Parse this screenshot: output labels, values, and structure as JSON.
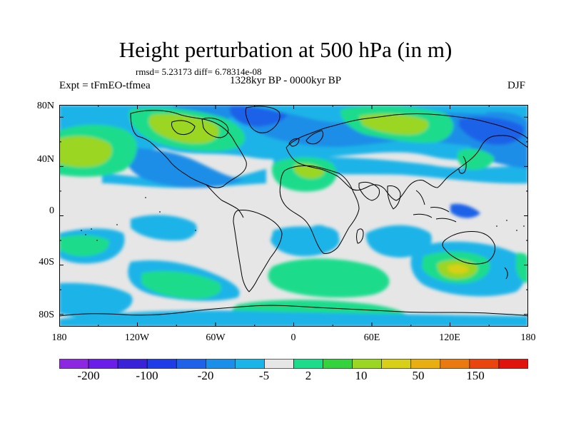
{
  "title": "Height perturbation at 500 hPa (in m)",
  "stats_text": "rmsd= 5.23173 diff= 6.78314e-08",
  "period": "1328kyr BP - 0000kyr BP",
  "experiment": "Expt = tFmEO-tfmea",
  "season": "DJF",
  "y_axis_labels": [
    "80N",
    "40N",
    "0",
    "40S",
    "80S"
  ],
  "x_axis_labels": [
    "180",
    "120W",
    "60W",
    "0",
    "60E",
    "120E",
    "180"
  ],
  "colorbar": {
    "labels": [
      "-200",
      "-100",
      "-20",
      "-5",
      "2",
      "10",
      "50",
      "150"
    ],
    "colors": [
      "#8b28e0",
      "#6a1ee8",
      "#3a22d8",
      "#1f3ce6",
      "#1e62e8",
      "#1a8ee8",
      "#1ab4e8",
      "#e6e6e6",
      "#1cdc8c",
      "#34d23c",
      "#9ad622",
      "#d8d018",
      "#e8ae12",
      "#e87a10",
      "#e8460e",
      "#e0140c"
    ]
  },
  "palette": {
    "neutral": "#e6e6e6",
    "light_blue": "#1ab4e8",
    "mid_blue": "#1a8ee8",
    "blue": "#1e62e8",
    "green": "#1cdc8c",
    "bright_green": "#34d23c",
    "lime": "#9ad622",
    "yellow": "#d8d018",
    "coast": "#000000"
  }
}
